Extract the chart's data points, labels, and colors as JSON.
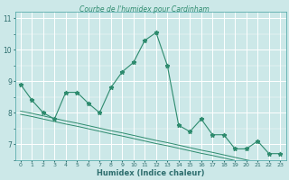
{
  "title": "Courbe de l'humidex pour Cardinham",
  "xlabel": "Humidex (Indice chaleur)",
  "x": [
    0,
    1,
    2,
    3,
    4,
    5,
    6,
    7,
    8,
    9,
    10,
    11,
    12,
    13,
    14,
    15,
    16,
    17,
    18,
    19,
    20,
    21,
    22,
    23
  ],
  "y_main": [
    8.9,
    8.4,
    8.0,
    7.8,
    8.65,
    8.65,
    8.3,
    8.0,
    8.8,
    9.3,
    9.6,
    10.3,
    10.55,
    9.5,
    7.6,
    7.4,
    7.8,
    7.3,
    7.3,
    6.85,
    6.85,
    7.1,
    6.7,
    6.7
  ],
  "y_trend1": [
    7.95,
    7.88,
    7.8,
    7.72,
    7.64,
    7.57,
    7.49,
    7.41,
    7.33,
    7.26,
    7.18,
    7.1,
    7.02,
    6.95,
    6.87,
    6.79,
    6.71,
    6.64,
    6.56,
    6.48,
    6.4,
    6.33,
    6.25,
    6.17
  ],
  "y_trend2": [
    8.05,
    7.98,
    7.9,
    7.82,
    7.74,
    7.67,
    7.59,
    7.51,
    7.43,
    7.36,
    7.28,
    7.2,
    7.12,
    7.05,
    6.97,
    6.89,
    6.81,
    6.74,
    6.66,
    6.58,
    6.5,
    6.43,
    6.35,
    6.27
  ],
  "line_color": "#2e8b6e",
  "bg_color": "#cce8e8",
  "grid_color": "#ffffff",
  "ylim": [
    6.5,
    11.2
  ],
  "xlim": [
    -0.5,
    23.5
  ],
  "yticks": [
    7,
    8,
    9,
    10,
    11
  ],
  "ytick_labels": [
    "7",
    "8",
    "9",
    "10",
    "11"
  ]
}
